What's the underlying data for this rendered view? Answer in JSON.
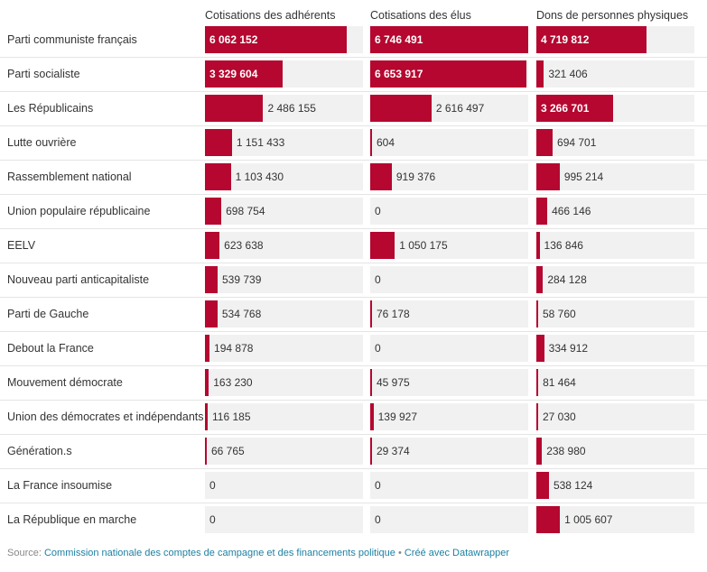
{
  "chart_data": {
    "type": "bar",
    "columns": [
      "Cotisations des adhérents",
      "Cotisations des élus",
      "Dons de personnes physiques"
    ],
    "categories": [
      "Parti communiste français",
      "Parti socialiste",
      "Les Républicains",
      "Lutte ouvrière",
      "Rassemblement national",
      "Union populaire républicaine",
      "EELV",
      "Nouveau parti anticapitaliste",
      "Parti de Gauche",
      "Debout la France",
      "Mouvement démocrate",
      "Union des démocrates et indépendants",
      "Génération.s",
      "La France insoumise",
      "La République en marche"
    ],
    "series": [
      {
        "name": "Cotisations des adhérents",
        "values": [
          6062152,
          3329604,
          2486155,
          1151433,
          1103430,
          698754,
          623638,
          539739,
          534768,
          194878,
          163230,
          116185,
          66765,
          0,
          0
        ],
        "labels": [
          "6 062 152",
          "3 329 604",
          "2 486 155",
          "1 151 433",
          "1 103 430",
          "698 754",
          "623 638",
          "539 739",
          "534 768",
          "194 878",
          "163 230",
          "116 185",
          "66 765",
          "0",
          "0"
        ]
      },
      {
        "name": "Cotisations des élus",
        "values": [
          6746491,
          6653917,
          2616497,
          604,
          919376,
          0,
          1050175,
          0,
          76178,
          0,
          45975,
          139927,
          29374,
          0,
          0
        ],
        "labels": [
          "6 746 491",
          "6 653 917",
          "2 616 497",
          "604",
          "919 376",
          "0",
          "1 050 175",
          "0",
          "76 178",
          "0",
          "45 975",
          "139 927",
          "29 374",
          "0",
          "0"
        ]
      },
      {
        "name": "Dons de personnes physiques",
        "values": [
          4719812,
          321406,
          3266701,
          694701,
          995214,
          466146,
          136846,
          284128,
          58760,
          334912,
          81464,
          27030,
          238980,
          538124,
          1005607
        ],
        "labels": [
          "4 719 812",
          "321 406",
          "3 266 701",
          "694 701",
          "995 214",
          "466 146",
          "136 846",
          "284 128",
          "58 760",
          "334 912",
          "81 464",
          "27 030",
          "238 980",
          "538 124",
          "1 005 607"
        ]
      }
    ],
    "xlim": [
      0,
      6746491
    ],
    "bar_color": "#b5072f",
    "track_color": "#f1f1f1"
  },
  "footer": {
    "source_label": "Source:",
    "source_link": "Commission nationale des comptes de campagne et des financements politique",
    "separator": "•",
    "credit": "Créé avec Datawrapper"
  }
}
